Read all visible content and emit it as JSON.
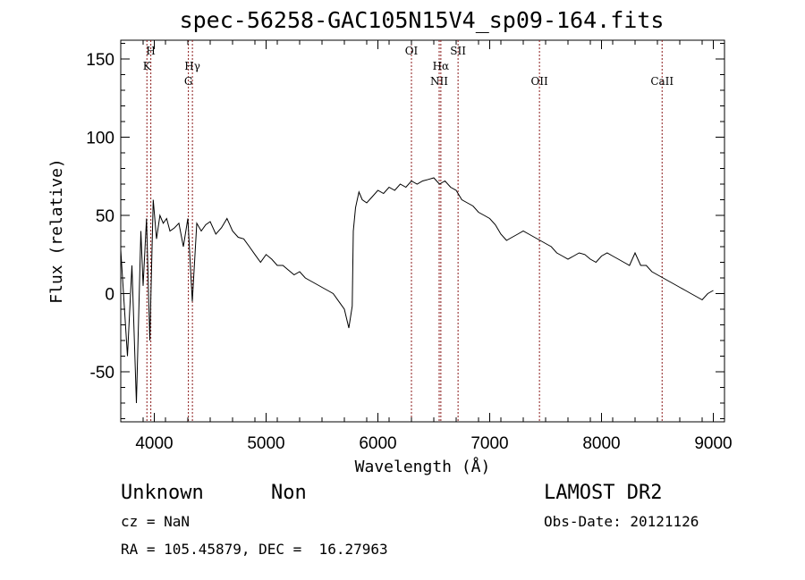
{
  "chart_data": {
    "type": "line",
    "title": "spec-56258-GAC105N15V4_sp09-164.fits",
    "xlabel": "Wavelength (Å)",
    "ylabel": "Flux (relative)",
    "xlim": [
      3700,
      9100
    ],
    "ylim": [
      -82,
      162
    ],
    "xticks": [
      4000,
      5000,
      6000,
      7000,
      8000,
      9000
    ],
    "yticks": [
      -50,
      0,
      50,
      100,
      150
    ],
    "x": [
      3700,
      3760,
      3800,
      3840,
      3880,
      3900,
      3930,
      3960,
      3990,
      4020,
      4050,
      4080,
      4110,
      4140,
      4180,
      4220,
      4260,
      4300,
      4340,
      4380,
      4420,
      4460,
      4500,
      4550,
      4600,
      4650,
      4700,
      4750,
      4800,
      4850,
      4900,
      4950,
      5000,
      5050,
      5100,
      5150,
      5200,
      5250,
      5300,
      5350,
      5400,
      5450,
      5500,
      5550,
      5600,
      5650,
      5700,
      5740,
      5770,
      5780,
      5800,
      5830,
      5860,
      5900,
      5950,
      6000,
      6050,
      6100,
      6150,
      6200,
      6250,
      6300,
      6350,
      6400,
      6450,
      6500,
      6550,
      6600,
      6650,
      6700,
      6750,
      6800,
      6850,
      6900,
      6950,
      7000,
      7050,
      7100,
      7150,
      7200,
      7250,
      7300,
      7350,
      7400,
      7450,
      7500,
      7550,
      7600,
      7650,
      7700,
      7750,
      7800,
      7850,
      7900,
      7950,
      8000,
      8050,
      8100,
      8150,
      8200,
      8250,
      8300,
      8350,
      8400,
      8450,
      8500,
      8550,
      8600,
      8650,
      8700,
      8750,
      8800,
      8850,
      8900,
      8950,
      9000
    ],
    "y": [
      28,
      -40,
      18,
      -70,
      40,
      5,
      48,
      -30,
      60,
      35,
      50,
      45,
      48,
      40,
      42,
      45,
      30,
      48,
      -5,
      45,
      40,
      44,
      46,
      38,
      42,
      48,
      40,
      36,
      35,
      30,
      25,
      20,
      25,
      22,
      18,
      18,
      15,
      12,
      14,
      10,
      8,
      6,
      4,
      2,
      0,
      -5,
      -10,
      -22,
      -8,
      40,
      55,
      65,
      60,
      58,
      62,
      66,
      64,
      68,
      66,
      70,
      68,
      72,
      70,
      72,
      73,
      74,
      70,
      72,
      68,
      66,
      60,
      58,
      56,
      52,
      50,
      48,
      44,
      38,
      34,
      36,
      38,
      40,
      38,
      36,
      34,
      32,
      30,
      26,
      24,
      22,
      24,
      26,
      25,
      22,
      20,
      24,
      26,
      24,
      22,
      20,
      18,
      26,
      18,
      18,
      14,
      12,
      10,
      8,
      6,
      4,
      2,
      0,
      -2,
      -4,
      0,
      2
    ],
    "lines": [
      {
        "wavelength": 3934,
        "label": "K"
      },
      {
        "wavelength": 3969,
        "label": "H"
      },
      {
        "wavelength": 4305,
        "label": "G"
      },
      {
        "wavelength": 4341,
        "label": "Hγ"
      },
      {
        "wavelength": 6300,
        "label": "OI"
      },
      {
        "wavelength": 6548,
        "label": "NII"
      },
      {
        "wavelength": 6563,
        "label": "Hα"
      },
      {
        "wavelength": 6717,
        "label": "SII"
      },
      {
        "wavelength": 7445,
        "label": "OII"
      },
      {
        "wavelength": 8542,
        "label": "CaII"
      }
    ],
    "line_color": "#8b1a1a",
    "series_color": "#000000",
    "grid": false
  },
  "info": {
    "object_type": "Unknown",
    "subclass": "Non",
    "survey": "LAMOST DR2",
    "redshift": "cz = NaN",
    "obs_date": "Obs-Date: 20121126",
    "coords": "RA = 105.45879, DEC =  16.27963"
  }
}
